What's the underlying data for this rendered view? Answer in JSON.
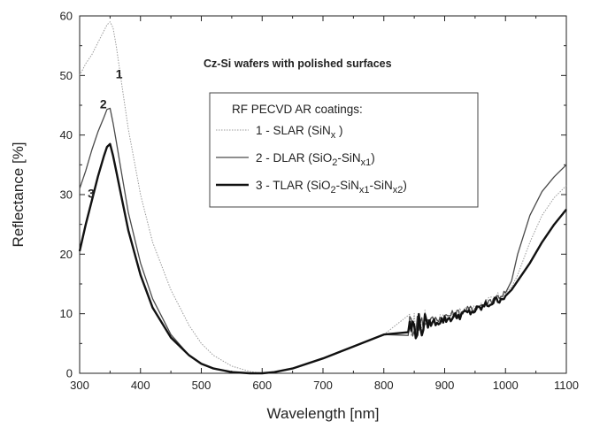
{
  "chart_data": {
    "type": "line",
    "annotation": "Cz-Si wafers with polished surfaces",
    "xlabel": "Wavelength [nm]",
    "ylabel": "Reflectance [%]",
    "xlim": [
      300,
      1100
    ],
    "ylim": [
      0,
      60
    ],
    "xticks": [
      300,
      400,
      500,
      600,
      700,
      800,
      900,
      1000,
      1100
    ],
    "yticks": [
      0,
      10,
      20,
      30,
      40,
      50,
      60
    ],
    "grid": false,
    "legend": {
      "title": "RF PECVD  AR coatings:",
      "placement": "center-right",
      "entries": [
        {
          "prefix": "1 - SLAR (",
          "parts": [
            [
              "SiN",
              "n"
            ],
            [
              "x",
              "sub"
            ],
            [
              " )",
              "n"
            ]
          ]
        },
        {
          "prefix": "2 - DLAR (",
          "parts": [
            [
              "SiO",
              "n"
            ],
            [
              "2",
              "sub"
            ],
            [
              "-SiN",
              "n"
            ],
            [
              "x1",
              "sub"
            ],
            [
              ")",
              "n"
            ]
          ]
        },
        {
          "prefix": "3 - TLAR (",
          "parts": [
            [
              "SiO",
              "n"
            ],
            [
              "2",
              "sub"
            ],
            [
              "-SiN",
              "n"
            ],
            [
              "x1",
              "sub"
            ],
            [
              "-SiN",
              "n"
            ],
            [
              "x2",
              "sub"
            ],
            [
              ")",
              "n"
            ]
          ]
        }
      ]
    },
    "series": [
      {
        "label": "1",
        "color": "#9a9a9a",
        "x": [
          300,
          310,
          320,
          330,
          340,
          345,
          350,
          355,
          360,
          370,
          380,
          400,
          420,
          450,
          480,
          500,
          520,
          550,
          580,
          600,
          620,
          650,
          700,
          750,
          800,
          840,
          860,
          900,
          950,
          1000,
          1010,
          1020,
          1040,
          1060,
          1080,
          1100
        ],
        "y": [
          50,
          52,
          53.5,
          55.5,
          57.5,
          58.5,
          59,
          58,
          55,
          48,
          41,
          30,
          22,
          14,
          8,
          5,
          3,
          1.2,
          0.3,
          0,
          0.2,
          0.8,
          2.5,
          4.5,
          6.5,
          8,
          8.5,
          9.5,
          11,
          13.5,
          14.5,
          16.5,
          22,
          26.5,
          29.5,
          31.5
        ]
      },
      {
        "label": "2",
        "color": "#4a4a4a",
        "x": [
          300,
          310,
          320,
          330,
          340,
          345,
          350,
          355,
          360,
          370,
          380,
          400,
          420,
          450,
          480,
          500,
          520,
          550,
          580,
          600,
          620,
          650,
          700,
          750,
          800,
          840,
          860,
          900,
          950,
          1000,
          1010,
          1020,
          1040,
          1060,
          1080,
          1100
        ],
        "y": [
          31,
          34,
          37.5,
          40.5,
          43,
          44.3,
          44.5,
          42,
          39,
          33,
          27,
          18.5,
          12.5,
          6.5,
          3,
          1.6,
          0.8,
          0.2,
          0,
          0,
          0.2,
          0.8,
          2.5,
          4.5,
          6.5,
          8,
          8.5,
          9.5,
          11,
          13.5,
          15.5,
          20,
          26.5,
          30.5,
          33,
          35
        ]
      },
      {
        "label": "3",
        "color": "#111111",
        "x": [
          300,
          310,
          320,
          330,
          340,
          345,
          350,
          355,
          360,
          370,
          380,
          400,
          420,
          450,
          480,
          500,
          520,
          550,
          580,
          600,
          620,
          650,
          700,
          750,
          800,
          840,
          860,
          900,
          950,
          1000,
          1010,
          1020,
          1040,
          1060,
          1080,
          1100
        ],
        "y": [
          20.5,
          25,
          29,
          33,
          36.5,
          38,
          38.5,
          36.5,
          34,
          29,
          24,
          16.5,
          11,
          6,
          3,
          1.6,
          0.8,
          0.2,
          0,
          0,
          0.2,
          0.8,
          2.5,
          4.5,
          6.5,
          7.5,
          8,
          9,
          10.5,
          13,
          14,
          15.5,
          18.5,
          22,
          25,
          27.5
        ]
      }
    ]
  }
}
